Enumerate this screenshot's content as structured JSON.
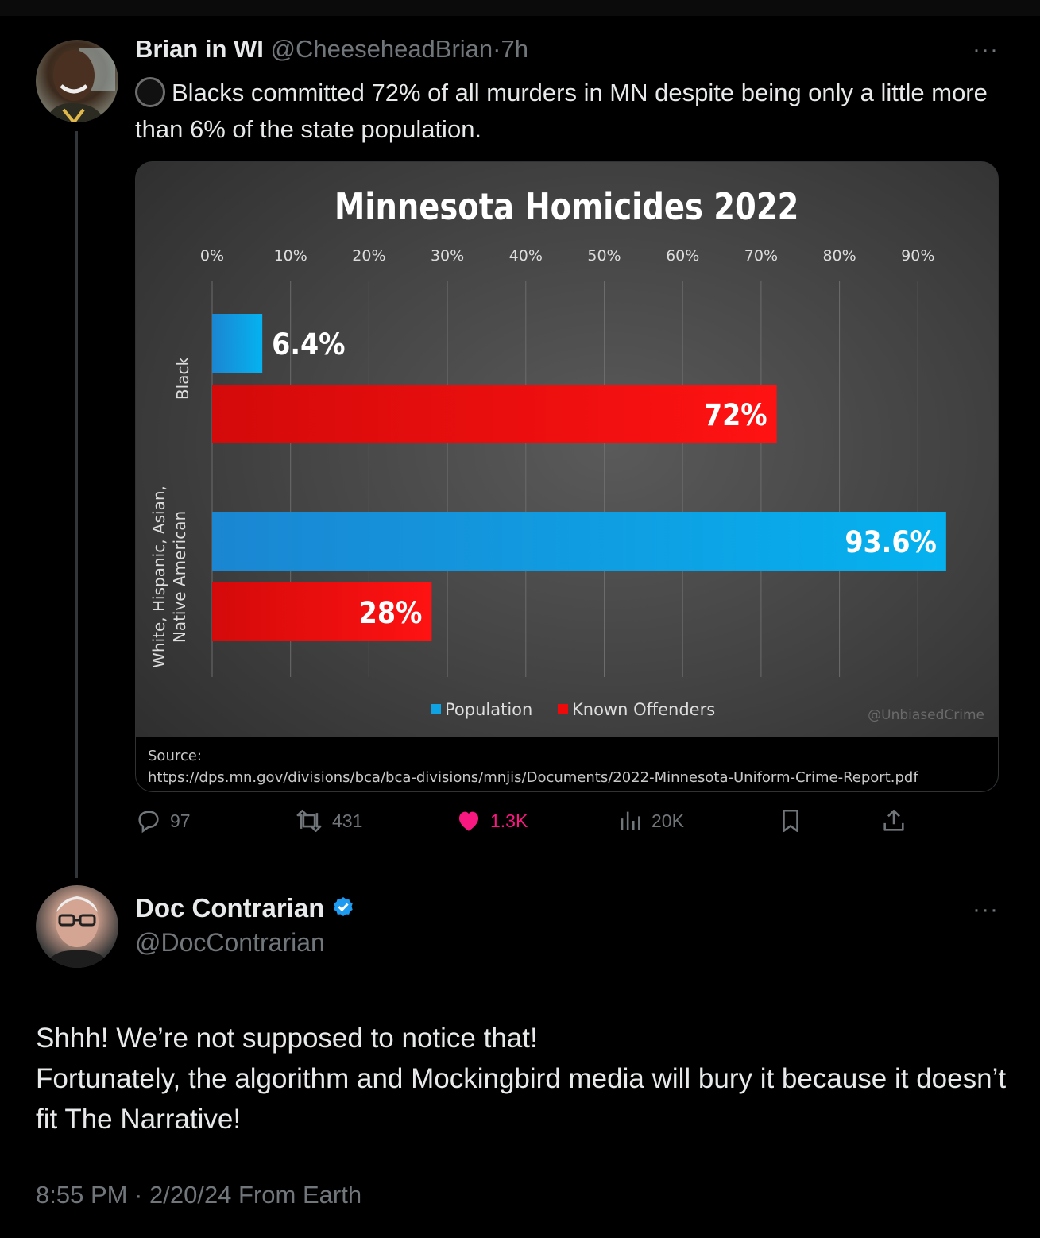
{
  "tweet1": {
    "name": "Brian in WI",
    "handle": "@CheeseheadBrian",
    "separator": "·",
    "time": "7h",
    "more_label": "···",
    "text": "Blacks committed 72% of all murders in MN despite being only a little more than 6% of the state population.",
    "stats": {
      "replies": "97",
      "reposts": "431",
      "likes": "1.3K",
      "views": "20K"
    },
    "card": {
      "source_label": "Source:",
      "source_url": "https://dps.mn.gov/divisions/bca/bca-divisions/mnjis/Documents/2022-Minnesota-Uniform-Crime-Report.pdf",
      "watermark": "@UnbiasedCrime"
    }
  },
  "tweet2": {
    "name": "Doc Contrarian",
    "handle": "@DocContrarian",
    "more_label": "···",
    "line1": "Shhh! We’re not supposed to notice that!",
    "line2": "Fortunately, the algorithm and Mockingbird media will bury it because it doesn’t fit The Narrative!",
    "timestamp": "8:55 PM · 2/20/24 From Earth"
  },
  "colors": {
    "population": "#10a3e3",
    "offenders": "#ee0a0a",
    "verified": "#1d9bf0",
    "like": "#f91880"
  },
  "chart_data": {
    "type": "bar",
    "orientation": "horizontal",
    "title": "Minnesota Homicides 2022",
    "categories": [
      "Black",
      "White, Hispanic, Asian, Native American"
    ],
    "series": [
      {
        "name": "Population",
        "values": [
          6.4,
          93.6
        ],
        "labels": [
          "6.4%",
          "93.6%"
        ]
      },
      {
        "name": "Known Offenders",
        "values": [
          72,
          28
        ],
        "labels": [
          "72%",
          "28%"
        ]
      }
    ],
    "xticks": [
      "0%",
      "10%",
      "20%",
      "30%",
      "40%",
      "50%",
      "60%",
      "70%",
      "80%",
      "90%"
    ],
    "xlim": [
      0,
      100
    ],
    "grid": true,
    "legend_position": "bottom"
  }
}
